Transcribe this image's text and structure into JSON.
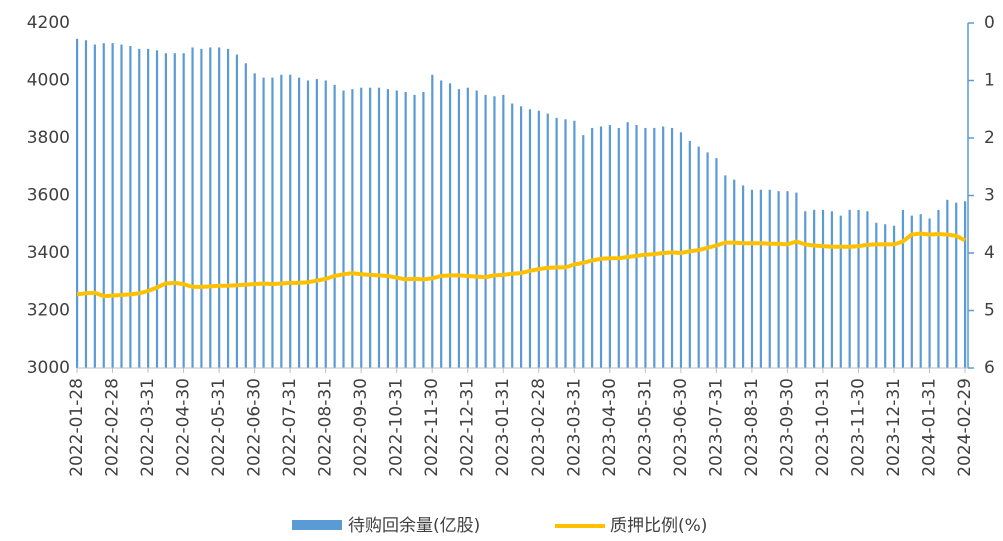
{
  "chart_data": {
    "type": "bar-line",
    "categories": [
      "2022-01-28",
      null,
      null,
      null,
      "2022-02-28",
      null,
      null,
      null,
      "2022-03-31",
      null,
      null,
      null,
      "2022-04-30",
      null,
      null,
      null,
      "2022-05-31",
      null,
      null,
      null,
      "2022-06-30",
      null,
      null,
      null,
      "2022-07-31",
      null,
      null,
      null,
      "2022-08-31",
      null,
      null,
      null,
      "2022-09-30",
      null,
      null,
      null,
      "2022-10-31",
      null,
      null,
      null,
      "2022-11-30",
      null,
      null,
      null,
      "2022-12-31",
      null,
      null,
      null,
      "2023-01-31",
      null,
      null,
      null,
      "2023-02-28",
      null,
      null,
      null,
      "2023-03-31",
      null,
      null,
      null,
      "2023-04-30",
      null,
      null,
      null,
      "2023-05-31",
      null,
      null,
      null,
      "2023-06-30",
      null,
      null,
      null,
      "2023-07-31",
      null,
      null,
      null,
      "2023-08-31",
      null,
      null,
      null,
      "2023-09-30",
      null,
      null,
      null,
      "2023-10-31",
      null,
      null,
      null,
      "2023-11-30",
      null,
      null,
      null,
      "2023-12-31",
      null,
      null,
      null,
      "2024-01-31",
      null,
      null,
      null,
      "2024-02-29"
    ],
    "series": [
      {
        "name": "待购回余量(亿股)",
        "color": "#5b9bd5",
        "values": [
          4145,
          4140,
          4125,
          4130,
          4130,
          4125,
          4120,
          4110,
          4110,
          4105,
          4095,
          4095,
          4095,
          4115,
          4110,
          4115,
          4115,
          4110,
          4090,
          4060,
          4025,
          4010,
          4010,
          4020,
          4020,
          4010,
          4000,
          4005,
          4000,
          3985,
          3965,
          3970,
          3975,
          3975,
          3975,
          3970,
          3965,
          3960,
          3950,
          3960,
          4020,
          4000,
          3990,
          3970,
          3975,
          3965,
          3950,
          3945,
          3950,
          3920,
          3910,
          3900,
          3895,
          3885,
          3870,
          3865,
          3860,
          3810,
          3835,
          3840,
          3845,
          3835,
          3855,
          3845,
          3835,
          3835,
          3840,
          3835,
          3820,
          3790,
          3770,
          3750,
          3730,
          3670,
          3655,
          3635,
          3620,
          3620,
          3620,
          3615,
          3615,
          3610,
          3545,
          3550,
          3550,
          3545,
          3530,
          3550,
          3550,
          3545,
          3505,
          3500,
          3495,
          3550,
          3530,
          3535,
          3520,
          3550,
          3585,
          3575,
          3580
        ]
      },
      {
        "name": "质押比例(%)",
        "color": "#ffc000",
        "axis": "y2",
        "values": [
          4.72,
          4.7,
          4.69,
          4.75,
          4.74,
          4.73,
          4.72,
          4.7,
          4.66,
          4.6,
          4.53,
          4.52,
          4.54,
          4.59,
          4.59,
          4.58,
          4.57,
          4.57,
          4.56,
          4.55,
          4.54,
          4.53,
          4.54,
          4.53,
          4.52,
          4.52,
          4.51,
          4.48,
          4.45,
          4.4,
          4.37,
          4.35,
          4.37,
          4.38,
          4.39,
          4.4,
          4.43,
          4.46,
          4.45,
          4.46,
          4.44,
          4.4,
          4.39,
          4.39,
          4.4,
          4.41,
          4.42,
          4.39,
          4.38,
          4.36,
          4.35,
          4.31,
          4.28,
          4.26,
          4.25,
          4.25,
          4.2,
          4.17,
          4.13,
          4.1,
          4.09,
          4.09,
          4.07,
          4.05,
          4.03,
          4.02,
          4.0,
          3.99,
          4.0,
          3.97,
          3.95,
          3.91,
          3.87,
          3.82,
          3.82,
          3.83,
          3.83,
          3.83,
          3.84,
          3.84,
          3.85,
          3.8,
          3.85,
          3.87,
          3.88,
          3.89,
          3.89,
          3.89,
          3.88,
          3.86,
          3.85,
          3.85,
          3.85,
          3.8,
          3.68,
          3.66,
          3.68,
          3.67,
          3.68,
          3.7,
          3.78
        ]
      }
    ],
    "ylim": [
      3000,
      4200
    ],
    "yticks": [
      3000,
      3200,
      3400,
      3600,
      3800,
      4000,
      4200
    ],
    "y2lim": [
      6,
      0
    ],
    "y2ticks": [
      0,
      1,
      2,
      3,
      4,
      5,
      6
    ],
    "y2_reversed": true,
    "legend": "bottom"
  }
}
